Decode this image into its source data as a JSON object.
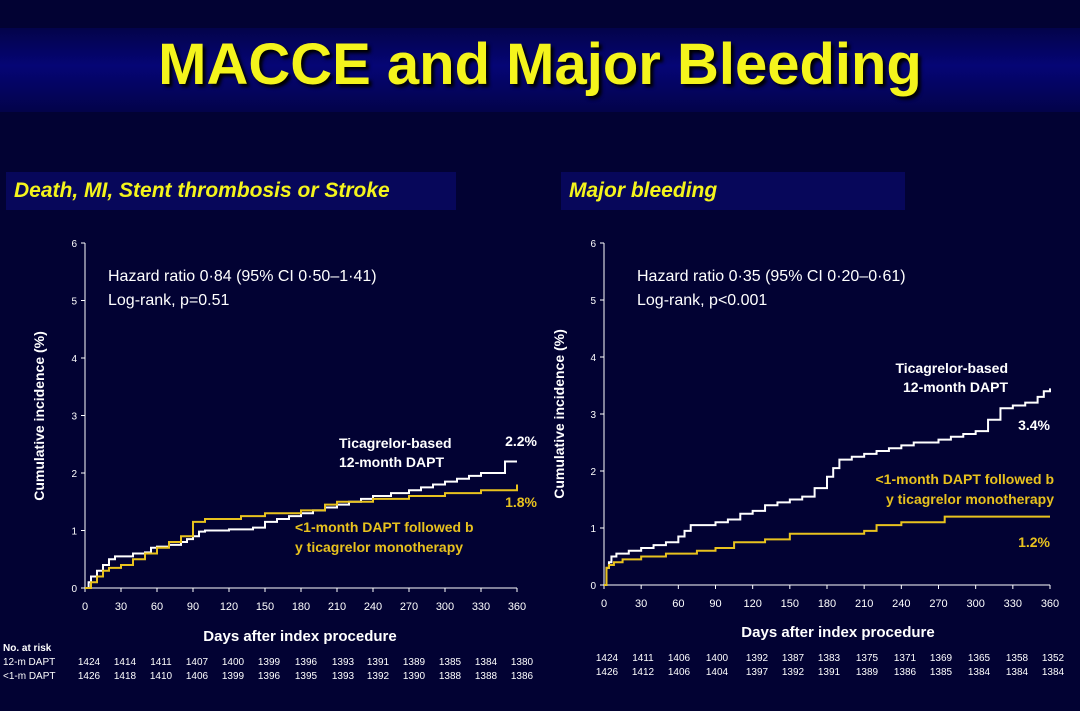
{
  "title": "MACCE and Major Bleeding",
  "colors": {
    "background": "#020233",
    "title": "#f4f41c",
    "accent": "#f4f41c",
    "white_curve": "#ffffff",
    "yellow_curve": "#e8c21e"
  },
  "chart_data": [
    {
      "type": "line",
      "panel_title": "Death, MI, Stent thrombosis or Stroke",
      "xlabel": "Days after index procedure",
      "ylabel": "Cumulative incidence (%)",
      "xlim": [
        0,
        360
      ],
      "ylim": [
        0,
        6
      ],
      "xticks": [
        "0",
        "30",
        "60",
        "90",
        "120",
        "150",
        "180",
        "210",
        "240",
        "270",
        "300",
        "330",
        "360"
      ],
      "yticks": [
        "0",
        "1",
        "2",
        "3",
        "4",
        "5",
        "6"
      ],
      "annotation_lines": [
        "Hazard ratio 0·84 (95% CI 0·50–1·41)",
        "Log-rank, p=0.51"
      ],
      "series": [
        {
          "name": "Ticagrelor-based 12-month DAPT",
          "label_lines": [
            "Ticagrelor-based",
            "12-month DAPT"
          ],
          "end_label": "2.2%",
          "color": "#ffffff",
          "x": [
            0,
            3,
            5,
            10,
            15,
            20,
            25,
            30,
            40,
            50,
            55,
            60,
            70,
            80,
            85,
            90,
            95,
            100,
            120,
            140,
            150,
            160,
            170,
            180,
            190,
            200,
            210,
            220,
            230,
            240,
            255,
            270,
            280,
            290,
            300,
            310,
            320,
            330,
            345,
            350,
            356,
            360
          ],
          "y": [
            0,
            0.1,
            0.2,
            0.3,
            0.4,
            0.5,
            0.55,
            0.55,
            0.6,
            0.62,
            0.7,
            0.72,
            0.75,
            0.8,
            0.85,
            0.9,
            0.98,
            1.0,
            1.02,
            1.05,
            1.15,
            1.2,
            1.25,
            1.3,
            1.35,
            1.4,
            1.45,
            1.5,
            1.55,
            1.6,
            1.65,
            1.7,
            1.75,
            1.8,
            1.85,
            1.9,
            1.95,
            2.0,
            2.0,
            2.2,
            2.2,
            2.2
          ]
        },
        {
          "name": "<1-month DAPT followed by ticagrelor monotherapy",
          "label_lines": [
            "<1-month DAPT followed b",
            "y ticagrelor monotherapy"
          ],
          "end_label": "1.8%",
          "color": "#e8c21e",
          "x": [
            0,
            5,
            10,
            15,
            20,
            30,
            40,
            50,
            60,
            70,
            80,
            90,
            95,
            100,
            120,
            130,
            150,
            180,
            200,
            210,
            240,
            270,
            300,
            330,
            360
          ],
          "y": [
            0,
            0.1,
            0.2,
            0.3,
            0.35,
            0.4,
            0.5,
            0.6,
            0.7,
            0.8,
            0.9,
            1.15,
            1.15,
            1.2,
            1.2,
            1.25,
            1.3,
            1.35,
            1.45,
            1.5,
            1.55,
            1.6,
            1.65,
            1.7,
            1.8
          ]
        }
      ],
      "risk_table": {
        "header": "No. at risk",
        "rows": [
          {
            "label": "12-m DAPT",
            "values": [
              "1424",
              "1414",
              "1411",
              "1407",
              "1400",
              "1399",
              "1396",
              "1393",
              "1391",
              "1389",
              "1385",
              "1384",
              "1380"
            ]
          },
          {
            "label": "<1-m DAPT",
            "values": [
              "1426",
              "1418",
              "1410",
              "1406",
              "1399",
              "1396",
              "1395",
              "1393",
              "1392",
              "1390",
              "1388",
              "1388",
              "1386"
            ]
          }
        ]
      }
    },
    {
      "type": "line",
      "panel_title": "Major bleeding",
      "xlabel": "Days after index procedure",
      "ylabel": "Cumulative incidence (%)",
      "xlim": [
        0,
        360
      ],
      "ylim": [
        0,
        6
      ],
      "xticks": [
        "0",
        "30",
        "60",
        "90",
        "120",
        "150",
        "180",
        "210",
        "240",
        "270",
        "300",
        "330",
        "360"
      ],
      "yticks": [
        "0",
        "1",
        "2",
        "3",
        "4",
        "5",
        "6"
      ],
      "annotation_lines": [
        "Hazard ratio 0·35 (95% CI 0·20–0·61)",
        "Log-rank, p<0.001"
      ],
      "series": [
        {
          "name": "Ticagrelor-based 12-month DAPT",
          "label_lines": [
            "Ticagrelor-based",
            "12-month DAPT"
          ],
          "end_label": "3.4%",
          "color": "#ffffff",
          "x": [
            0,
            2,
            4,
            6,
            10,
            20,
            30,
            40,
            50,
            60,
            65,
            70,
            80,
            90,
            100,
            110,
            120,
            130,
            140,
            150,
            160,
            170,
            180,
            185,
            190,
            200,
            210,
            220,
            230,
            240,
            250,
            260,
            270,
            280,
            290,
            300,
            310,
            320,
            330,
            340,
            350,
            355,
            360
          ],
          "y": [
            0,
            0.3,
            0.4,
            0.5,
            0.55,
            0.6,
            0.65,
            0.7,
            0.75,
            0.85,
            0.95,
            1.05,
            1.05,
            1.1,
            1.15,
            1.25,
            1.3,
            1.4,
            1.45,
            1.5,
            1.55,
            1.7,
            1.9,
            2.05,
            2.2,
            2.25,
            2.3,
            2.35,
            2.4,
            2.45,
            2.5,
            2.5,
            2.55,
            2.6,
            2.65,
            2.7,
            2.9,
            3.1,
            3.15,
            3.2,
            3.3,
            3.4,
            3.45
          ]
        },
        {
          "name": "<1-month DAPT followed by ticagrelor monotherapy",
          "label_lines": [
            "<1-month DAPT followed b",
            "y ticagrelor monotherapy"
          ],
          "end_label": "1.2%",
          "color": "#e8c21e",
          "x": [
            0,
            2,
            4,
            8,
            15,
            30,
            50,
            75,
            90,
            105,
            130,
            150,
            180,
            210,
            220,
            240,
            270,
            275,
            300,
            330,
            360
          ],
          "y": [
            0,
            0.3,
            0.35,
            0.4,
            0.45,
            0.5,
            0.55,
            0.6,
            0.65,
            0.75,
            0.8,
            0.9,
            0.9,
            0.95,
            1.05,
            1.1,
            1.1,
            1.2,
            1.2,
            1.2,
            1.2
          ]
        }
      ],
      "risk_table": {
        "header": "",
        "rows": [
          {
            "label": "",
            "values": [
              "1424",
              "1411",
              "1406",
              "1400",
              "1392",
              "1387",
              "1383",
              "1375",
              "1371",
              "1369",
              "1365",
              "1358",
              "1352"
            ]
          },
          {
            "label": "",
            "values": [
              "1426",
              "1412",
              "1406",
              "1404",
              "1397",
              "1392",
              "1391",
              "1389",
              "1386",
              "1385",
              "1384",
              "1384",
              "1384"
            ]
          }
        ]
      }
    }
  ]
}
